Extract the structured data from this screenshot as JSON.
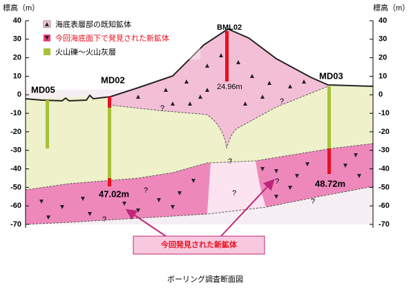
{
  "left_axis": {
    "label": "標高（m）",
    "range": [
      -70,
      40
    ],
    "ticks": [
      40,
      30,
      20,
      10,
      0,
      -10,
      -20,
      -30,
      -40,
      -50,
      -60,
      -70
    ]
  },
  "right_axis": {
    "label": "標高（m）",
    "range": [
      -70,
      40
    ],
    "ticks": [
      40,
      30,
      20,
      10,
      0,
      -10,
      -20,
      -30,
      -40,
      -50,
      -60,
      -70
    ]
  },
  "legend": [
    "海底表層部の既知鉱体",
    "今回海底面下で発見された新鉱体",
    "火山礫～火山灰層"
  ],
  "wells": [
    {
      "name": "MD05"
    },
    {
      "name": "MD02",
      "depth": "47.02m"
    },
    {
      "name": "BML02",
      "depth": "24.96m"
    },
    {
      "name": "MD03",
      "depth": "48.72m"
    }
  ],
  "unknowns": [
    "?",
    "?",
    "?",
    "?",
    "?",
    "?",
    "?",
    "?"
  ],
  "callout": "今回発見された新鉱体",
  "caption": "ボーリング調査断面図"
}
